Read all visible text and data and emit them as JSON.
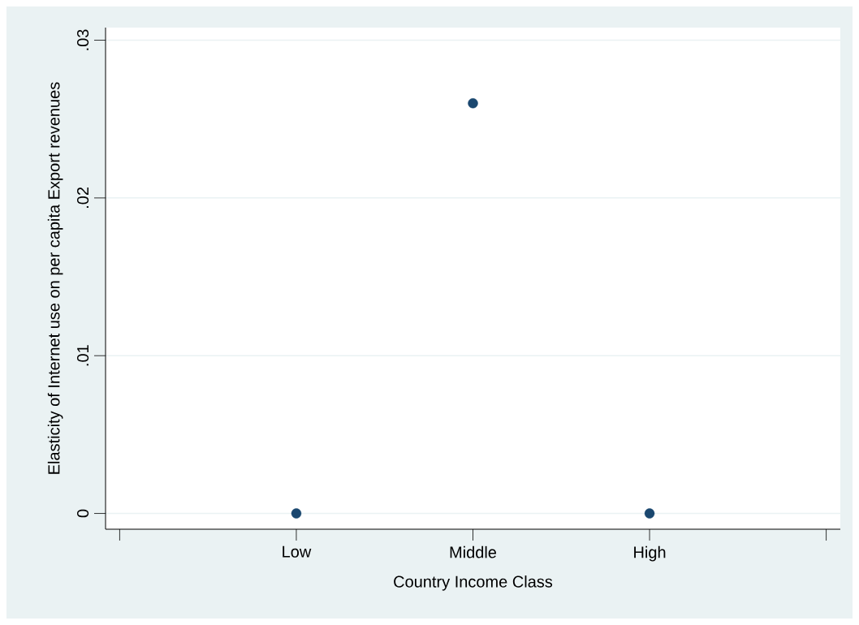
{
  "chart_data": {
    "type": "scatter",
    "xlabel": "Country Income Class",
    "ylabel": "Elasticity of Internet use on per capita Export revenues",
    "categories": [
      null,
      "Low",
      "Middle",
      "High",
      null
    ],
    "values": [
      null,
      0,
      0.026,
      0,
      null
    ],
    "color": "#1a476f",
    "marker": "circle",
    "ylim": [
      -0.001,
      0.0308
    ],
    "yticks": [
      0,
      {
        "value": 0.01,
        "label": ".01"
      },
      {
        "value": 0.02,
        "label": ".02"
      },
      {
        "value": 0.03,
        "label": ".03"
      }
    ],
    "grid": "y"
  }
}
